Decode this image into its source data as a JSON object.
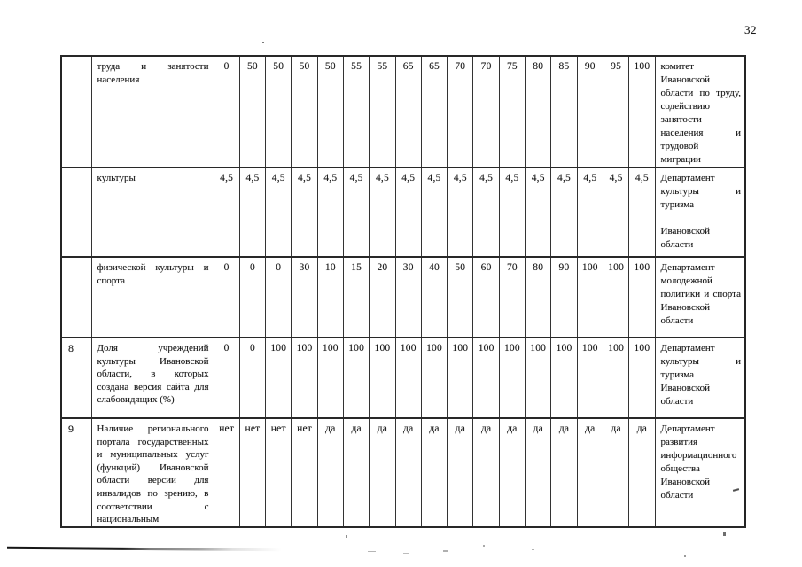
{
  "page_number": "32",
  "table": {
    "rows": [
      {
        "num": "",
        "indicator": "труда и занятости населения",
        "values": [
          "0",
          "50",
          "50",
          "50",
          "50",
          "55",
          "55",
          "65",
          "65",
          "70",
          "70",
          "75",
          "80",
          "85",
          "90",
          "95",
          "100"
        ],
        "department": [
          "комитет Ивановской области по труду, содействию занятости населения и трудовой миграции"
        ]
      },
      {
        "num": "",
        "indicator": "культуры",
        "values": [
          "4,5",
          "4,5",
          "4,5",
          "4,5",
          "4,5",
          "4,5",
          "4,5",
          "4,5",
          "4,5",
          "4,5",
          "4,5",
          "4,5",
          "4,5",
          "4,5",
          "4,5",
          "4,5",
          "4,5"
        ],
        "department": [
          "Департамент культуры и туризма",
          "",
          "Ивановской области"
        ]
      },
      {
        "num": "",
        "indicator": "физической культуры и спорта",
        "values": [
          "0",
          "0",
          "0",
          "30",
          "10",
          "15",
          "20",
          "30",
          "40",
          "50",
          "60",
          "70",
          "80",
          "90",
          "100",
          "100",
          "100"
        ],
        "department": [
          "Департамент молодежной политики и спорта Ивановской области"
        ]
      },
      {
        "num": "8",
        "indicator": "Доля учреждений культуры Ивановской области, в которых создана версия сайта для слабовидящих (%)",
        "values": [
          "0",
          "0",
          "100",
          "100",
          "100",
          "100",
          "100",
          "100",
          "100",
          "100",
          "100",
          "100",
          "100",
          "100",
          "100",
          "100",
          "100"
        ],
        "department": [
          "Департамент культуры и туризма Ивановской области"
        ]
      },
      {
        "num": "9",
        "indicator": "Наличие регионального портала государственных и муниципальных услуг (функций) Ивановской области версии для инвалидов по зрению, в соответствии с национальным",
        "values": [
          "нет",
          "нет",
          "нет",
          "нет",
          "да",
          "да",
          "да",
          "да",
          "да",
          "да",
          "да",
          "да",
          "да",
          "да",
          "да",
          "да",
          "да"
        ],
        "department": [
          "Департамент развития информационного общества Ивановской области"
        ]
      }
    ]
  }
}
